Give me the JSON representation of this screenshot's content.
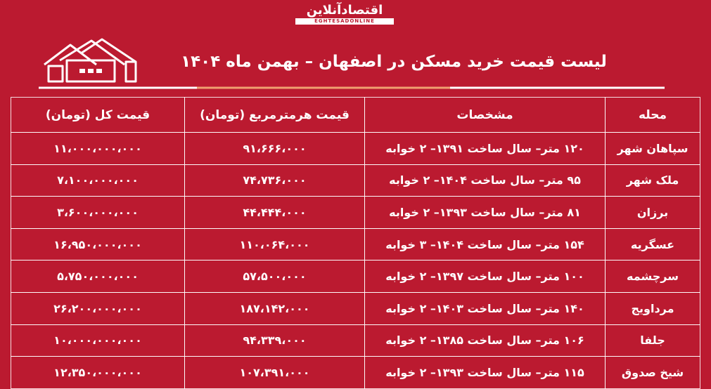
{
  "logo": {
    "name": "اقتصادآنلاین",
    "latin": "EGHTESADONLINE"
  },
  "title": "لیست قیمت خرید مسکن در اصفهان – بهمن ماه ۱۴۰۴",
  "table": {
    "header": [
      "محله",
      "مشخصات",
      "قیمت هرمترمربع (تومان)",
      "قیمت کل (تومان)"
    ],
    "rows": [
      [
        "سپاهان شهر",
        "۱۲۰ متر– سال ساخت ۱۳۹۱– ۲ خوابه",
        "۹۱،۶۶۶،۰۰۰",
        "۱۱،۰۰۰،۰۰۰،۰۰۰"
      ],
      [
        "ملک شهر",
        "۹۵ متر– سال ساخت ۱۴۰۴– ۲ خوابه",
        "۷۴،۷۳۶،۰۰۰",
        "۷،۱۰۰،۰۰۰،۰۰۰"
      ],
      [
        "برزان",
        "۸۱ متر– سال ساخت ۱۳۹۳– ۲ خوابه",
        "۴۴،۴۴۴،۰۰۰",
        "۳،۶۰۰،۰۰۰،۰۰۰"
      ],
      [
        "عسگریه",
        "۱۵۴ متر– سال ساخت ۱۴۰۴– ۳ خوابه",
        "۱۱۰،۰۶۴،۰۰۰",
        "۱۶،۹۵۰،۰۰۰،۰۰۰"
      ],
      [
        "سرچشمه",
        "۱۰۰ متر– سال ساخت ۱۳۹۷– ۲ خوابه",
        "۵۷،۵۰۰،۰۰۰",
        "۵،۷۵۰،۰۰۰،۰۰۰"
      ],
      [
        "مرداویج",
        "۱۴۰ متر– سال ساخت ۱۴۰۳– ۲ خوابه",
        "۱۸۷،۱۴۲،۰۰۰",
        "۲۶،۲۰۰،۰۰۰،۰۰۰"
      ],
      [
        "جلفا",
        "۱۰۶ متر– سال ساخت ۱۳۸۵– ۲ خوابه",
        "۹۴،۳۳۹،۰۰۰",
        "۱۰،۰۰۰،۰۰۰،۰۰۰"
      ],
      [
        "شیخ صدوق",
        "۱۱۵ متر– سال ساخت ۱۳۹۳– ۲ خوابه",
        "۱۰۷،۳۹۱،۰۰۰",
        "۱۲،۳۵۰،۰۰۰،۰۰۰"
      ]
    ]
  }
}
